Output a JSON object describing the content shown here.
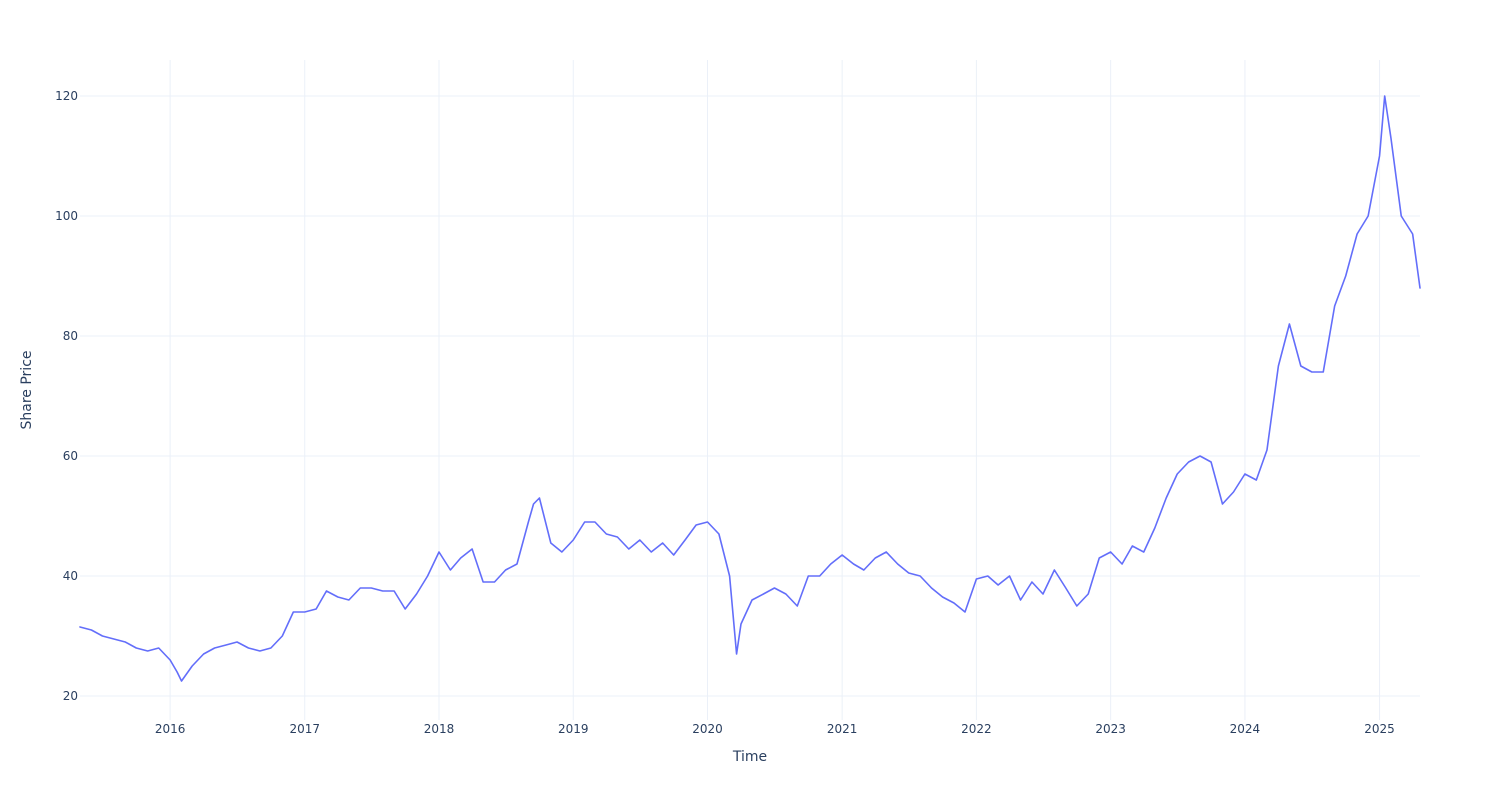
{
  "chart_data": {
    "type": "line",
    "title": "",
    "xlabel": "Time",
    "ylabel": "Share Price",
    "xlim": [
      "2015-05-01",
      "2025-04-21"
    ],
    "ylim": [
      16,
      126
    ],
    "x_tick_labels": [
      "2016",
      "2017",
      "2018",
      "2019",
      "2020",
      "2021",
      "2022",
      "2023",
      "2024",
      "2025"
    ],
    "x_tick_dates": [
      "2016-01-01",
      "2017-01-01",
      "2018-01-01",
      "2019-01-01",
      "2020-01-01",
      "2021-01-01",
      "2022-01-01",
      "2023-01-01",
      "2024-01-01",
      "2025-01-01"
    ],
    "y_ticks": [
      20,
      40,
      60,
      80,
      100,
      120
    ],
    "grid": true,
    "legend": "none",
    "line_color": "#636efa",
    "series": [
      {
        "x": [
          "2015-05-01",
          "2015-06-01",
          "2015-07-01",
          "2015-08-01",
          "2015-09-01",
          "2015-10-01",
          "2015-11-01",
          "2015-12-01",
          "2016-01-01",
          "2016-01-20",
          "2016-02-01",
          "2016-03-01",
          "2016-04-01",
          "2016-05-01",
          "2016-06-01",
          "2016-07-01",
          "2016-08-01",
          "2016-09-01",
          "2016-10-01",
          "2016-11-01",
          "2016-12-01",
          "2017-01-01",
          "2017-02-01",
          "2017-03-01",
          "2017-04-01",
          "2017-05-01",
          "2017-06-01",
          "2017-07-01",
          "2017-08-01",
          "2017-09-01",
          "2017-10-01",
          "2017-11-01",
          "2017-12-01",
          "2018-01-01",
          "2018-02-01",
          "2018-03-01",
          "2018-04-01",
          "2018-05-01",
          "2018-06-01",
          "2018-07-01",
          "2018-08-01",
          "2018-09-01",
          "2018-09-15",
          "2018-10-01",
          "2018-11-01",
          "2018-12-01",
          "2019-01-01",
          "2019-02-01",
          "2019-03-01",
          "2019-04-01",
          "2019-05-01",
          "2019-06-01",
          "2019-07-01",
          "2019-08-01",
          "2019-09-01",
          "2019-10-01",
          "2019-11-01",
          "2019-12-01",
          "2020-01-01",
          "2020-02-01",
          "2020-03-01",
          "2020-03-20",
          "2020-04-01",
          "2020-05-01",
          "2020-06-01",
          "2020-07-01",
          "2020-08-01",
          "2020-09-01",
          "2020-10-01",
          "2020-11-01",
          "2020-12-01",
          "2021-01-01",
          "2021-02-01",
          "2021-03-01",
          "2021-04-01",
          "2021-05-01",
          "2021-06-01",
          "2021-07-01",
          "2021-08-01",
          "2021-09-01",
          "2021-10-01",
          "2021-11-01",
          "2021-12-01",
          "2022-01-01",
          "2022-02-01",
          "2022-03-01",
          "2022-04-01",
          "2022-05-01",
          "2022-06-01",
          "2022-07-01",
          "2022-08-01",
          "2022-09-01",
          "2022-10-01",
          "2022-11-01",
          "2022-12-01",
          "2023-01-01",
          "2023-02-01",
          "2023-03-01",
          "2023-04-01",
          "2023-05-01",
          "2023-06-01",
          "2023-07-01",
          "2023-08-01",
          "2023-09-01",
          "2023-10-01",
          "2023-11-01",
          "2023-12-01",
          "2024-01-01",
          "2024-02-01",
          "2024-03-01",
          "2024-04-01",
          "2024-05-01",
          "2024-06-01",
          "2024-07-01",
          "2024-08-01",
          "2024-09-01",
          "2024-10-01",
          "2024-11-01",
          "2024-12-01",
          "2025-01-01",
          "2025-01-15",
          "2025-02-01",
          "2025-03-01",
          "2025-04-01",
          "2025-04-21"
        ],
        "y": [
          31.5,
          31.0,
          30.0,
          29.5,
          29.0,
          28.0,
          27.5,
          28.0,
          26.0,
          24.0,
          22.5,
          25.0,
          27.0,
          28.0,
          28.5,
          29.0,
          28.0,
          27.5,
          28.0,
          30.0,
          34.0,
          34.0,
          34.5,
          37.5,
          36.5,
          36.0,
          38.0,
          38.0,
          37.5,
          37.5,
          34.5,
          37.0,
          40.0,
          44.0,
          41.0,
          43.0,
          44.5,
          39.0,
          39.0,
          41.0,
          42.0,
          49.0,
          52.0,
          53.0,
          45.5,
          44.0,
          46.0,
          49.0,
          49.0,
          47.0,
          46.5,
          44.5,
          46.0,
          44.0,
          45.5,
          43.5,
          46.0,
          48.5,
          49.0,
          47.0,
          40.0,
          27.0,
          32.0,
          36.0,
          37.0,
          38.0,
          37.0,
          35.0,
          40.0,
          40.0,
          42.0,
          43.5,
          42.0,
          41.0,
          43.0,
          44.0,
          42.0,
          40.5,
          40.0,
          38.0,
          36.5,
          35.5,
          34.0,
          39.5,
          40.0,
          38.5,
          40.0,
          36.0,
          39.0,
          37.0,
          41.0,
          38.0,
          35.0,
          37.0,
          43.0,
          44.0,
          42.0,
          45.0,
          44.0,
          48.0,
          53.0,
          57.0,
          59.0,
          60.0,
          59.0,
          52.0,
          54.0,
          57.0,
          56.0,
          61.0,
          75.0,
          82.0,
          75.0,
          74.0,
          74.0,
          85.0,
          90.0,
          97.0,
          100.0,
          110.0,
          120.0,
          113.0,
          100.0,
          97.0,
          88.0
        ]
      }
    ]
  }
}
